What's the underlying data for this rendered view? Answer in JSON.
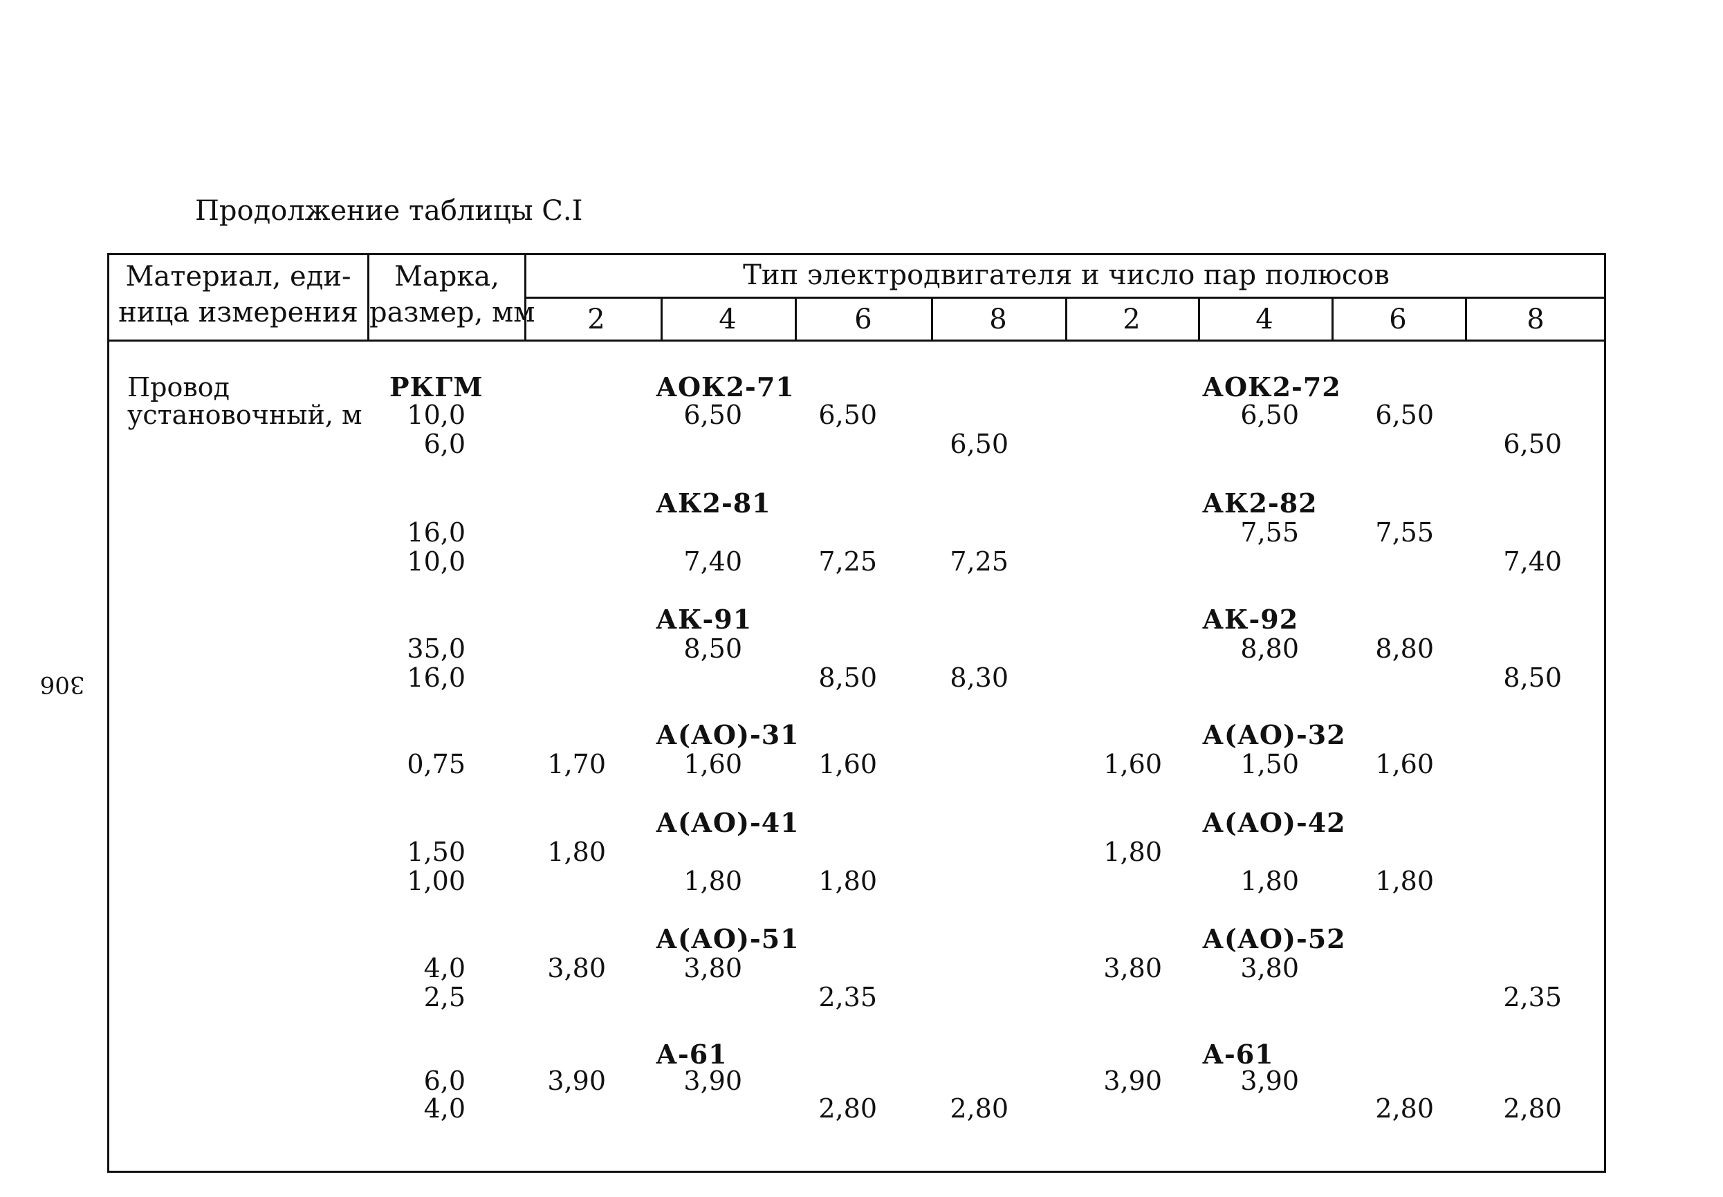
{
  "page_number": "306",
  "caption": "Продолжение таблицы С.I",
  "header": {
    "col_material_line1": "Материал, еди-",
    "col_material_line2": "ница измерения",
    "col_mark_line1": "Марка,",
    "col_mark_line2": "размер, мм",
    "group_title": "Тип электродвигателя и число пар полюсов",
    "poles": [
      "2",
      "4",
      "6",
      "8",
      "2",
      "4",
      "6",
      "8"
    ]
  },
  "body": {
    "material_line1": "Провод",
    "material_line2": "установочный, м",
    "brand": "РКГМ",
    "groups": [
      {
        "motor_left": "АОК2-71",
        "motor_right": "АОК2-72",
        "rows": [
          {
            "size": "10,0",
            "c": [
              "",
              "6,50",
              "6,50",
              "",
              "",
              "6,50",
              "6,50",
              ""
            ]
          },
          {
            "size": "6,0",
            "c": [
              "",
              "",
              "",
              "6,50",
              "",
              "",
              "",
              "6,50"
            ]
          }
        ]
      },
      {
        "motor_left": "АК2-81",
        "motor_right": "АК2-82",
        "rows": [
          {
            "size": "16,0",
            "c": [
              "",
              "",
              "",
              "",
              "",
              "7,55",
              "7,55",
              ""
            ]
          },
          {
            "size": "10,0",
            "c": [
              "",
              "7,40",
              "7,25",
              "7,25",
              "",
              "",
              "",
              "7,40"
            ]
          }
        ]
      },
      {
        "motor_left": "АК-91",
        "motor_right": "АК-92",
        "rows": [
          {
            "size": "35,0",
            "c": [
              "",
              "8,50",
              "",
              "",
              "",
              "8,80",
              "8,80",
              ""
            ]
          },
          {
            "size": "16,0",
            "c": [
              "",
              "",
              "8,50",
              "8,30",
              "",
              "",
              "",
              "8,50"
            ]
          }
        ]
      },
      {
        "motor_left": "А(АО)-31",
        "motor_right": "А(АО)-32",
        "rows": [
          {
            "size": "0,75",
            "c": [
              "1,70",
              "1,60",
              "1,60",
              "",
              "1,60",
              "1,50",
              "1,60",
              ""
            ]
          }
        ]
      },
      {
        "motor_left": "А(АО)-41",
        "motor_right": "А(АО)-42",
        "rows": [
          {
            "size": "1,50",
            "c": [
              "1,80",
              "",
              "",
              "",
              "1,80",
              "",
              "",
              ""
            ]
          },
          {
            "size": "1,00",
            "c": [
              "",
              "1,80",
              "1,80",
              "",
              "",
              "1,80",
              "1,80",
              ""
            ]
          }
        ]
      },
      {
        "motor_left": "А(АО)-51",
        "motor_right": "А(АО)-52",
        "rows": [
          {
            "size": "4,0",
            "c": [
              "3,80",
              "3,80",
              "",
              "",
              "3,80",
              "3,80",
              "",
              ""
            ]
          },
          {
            "size": "2,5",
            "c": [
              "",
              "",
              "2,35",
              "",
              "",
              "",
              "",
              "2,35"
            ]
          }
        ]
      },
      {
        "motor_left": "А-61",
        "motor_right": "А-61",
        "rows": [
          {
            "size": "6,0",
            "c": [
              "3,90",
              "3,90",
              "",
              "",
              "3,90",
              "3,90",
              "",
              ""
            ]
          },
          {
            "size": "4,0",
            "c": [
              "",
              "",
              "2,80",
              "2,80",
              "",
              "",
              "2,80",
              "2,80"
            ]
          }
        ]
      }
    ]
  }
}
